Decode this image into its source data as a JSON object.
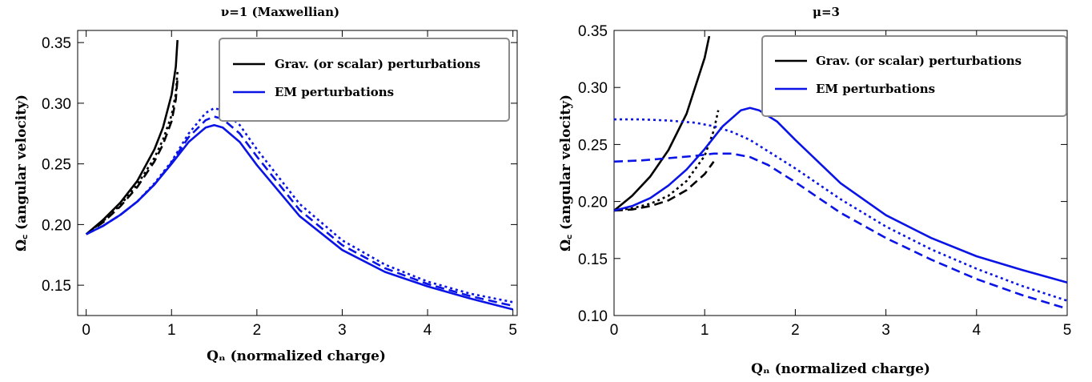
{
  "chart_data": [
    {
      "type": "line",
      "title": "ν=1 (Maxwellian)",
      "xlabel": "Qₙ (normalized charge)",
      "ylabel": "Ω꜀ (angular velocity)",
      "xlim": [
        -0.1,
        5.05
      ],
      "ylim": [
        0.125,
        0.36
      ],
      "xticks": [
        "0",
        "1",
        "2",
        "3",
        "4",
        "5"
      ],
      "yticks": [
        "0.15",
        "0.20",
        "0.25",
        "0.30",
        "0.35"
      ],
      "legend": {
        "placement": "top-right",
        "entries": [
          {
            "label": "Grav. (or scalar) perturbations",
            "color": "#000000"
          },
          {
            "label": "EM perturbations",
            "color": "#0a14e6"
          }
        ]
      },
      "series": [
        {
          "color": "#000000",
          "style": "solid",
          "x": [
            0,
            0.2,
            0.4,
            0.6,
            0.8,
            0.9,
            1.0,
            1.05,
            1.07
          ],
          "y": [
            0.192,
            0.204,
            0.218,
            0.236,
            0.262,
            0.28,
            0.307,
            0.33,
            0.352
          ]
        },
        {
          "color": "#000000",
          "style": "dashed",
          "x": [
            0,
            0.2,
            0.4,
            0.6,
            0.8,
            0.9,
            1.0,
            1.05,
            1.07
          ],
          "y": [
            0.192,
            0.202,
            0.215,
            0.231,
            0.252,
            0.266,
            0.285,
            0.303,
            0.32
          ]
        },
        {
          "color": "#000000",
          "style": "dotted",
          "x": [
            0,
            0.2,
            0.4,
            0.6,
            0.8,
            0.9,
            1.0,
            1.05,
            1.07
          ],
          "y": [
            0.192,
            0.203,
            0.216,
            0.233,
            0.255,
            0.27,
            0.29,
            0.308,
            0.326
          ]
        },
        {
          "color": "#0a14e6",
          "style": "solid",
          "x": [
            0,
            0.2,
            0.4,
            0.6,
            0.8,
            1.0,
            1.2,
            1.4,
            1.5,
            1.6,
            1.8,
            2.0,
            2.5,
            3.0,
            3.5,
            4.0,
            4.5,
            5.0
          ],
          "y": [
            0.192,
            0.199,
            0.208,
            0.219,
            0.233,
            0.25,
            0.268,
            0.28,
            0.282,
            0.28,
            0.268,
            0.249,
            0.207,
            0.179,
            0.161,
            0.149,
            0.139,
            0.13
          ]
        },
        {
          "color": "#0a14e6",
          "style": "dashed",
          "x": [
            0,
            0.2,
            0.4,
            0.6,
            0.8,
            1.0,
            1.2,
            1.4,
            1.5,
            1.6,
            1.8,
            2.0,
            2.5,
            3.0,
            3.5,
            4.0,
            4.5,
            5.0
          ],
          "y": [
            0.192,
            0.199,
            0.208,
            0.219,
            0.233,
            0.251,
            0.272,
            0.286,
            0.289,
            0.287,
            0.275,
            0.256,
            0.212,
            0.183,
            0.164,
            0.151,
            0.141,
            0.133
          ]
        },
        {
          "color": "#0a14e6",
          "style": "dotted",
          "x": [
            0,
            0.2,
            0.4,
            0.6,
            0.8,
            1.0,
            1.2,
            1.4,
            1.5,
            1.6,
            1.8,
            2.0,
            2.5,
            3.0,
            3.5,
            4.0,
            4.5,
            5.0
          ],
          "y": [
            0.192,
            0.199,
            0.208,
            0.219,
            0.234,
            0.252,
            0.275,
            0.292,
            0.296,
            0.294,
            0.282,
            0.262,
            0.217,
            0.187,
            0.167,
            0.153,
            0.143,
            0.136
          ]
        }
      ]
    },
    {
      "type": "line",
      "title": "μ=3",
      "xlabel": "Qₙ (normalized charge)",
      "ylabel": "Ω꜀ (angular velocity)",
      "xlim": [
        0,
        5
      ],
      "ylim": [
        0.1,
        0.35
      ],
      "xticks": [
        "0",
        "1",
        "2",
        "3",
        "4",
        "5"
      ],
      "yticks": [
        "0.10",
        "0.15",
        "0.20",
        "0.25",
        "0.30",
        "0.35"
      ],
      "legend": {
        "placement": "top-right",
        "entries": [
          {
            "label": "Grav. (or scalar) perturbations",
            "color": "#000000"
          },
          {
            "label": "EM perturbations",
            "color": "#0a14e6"
          }
        ]
      },
      "series": [
        {
          "color": "#000000",
          "style": "solid",
          "x": [
            0,
            0.2,
            0.4,
            0.6,
            0.8,
            1.0,
            1.05
          ],
          "y": [
            0.192,
            0.205,
            0.222,
            0.245,
            0.277,
            0.326,
            0.345
          ]
        },
        {
          "color": "#000000",
          "style": "dashed",
          "x": [
            0,
            0.2,
            0.4,
            0.6,
            0.8,
            1.0,
            1.1
          ],
          "y": [
            0.192,
            0.193,
            0.196,
            0.201,
            0.21,
            0.224,
            0.235
          ]
        },
        {
          "color": "#000000",
          "style": "dotted",
          "x": [
            0,
            0.2,
            0.4,
            0.6,
            0.8,
            1.0,
            1.1,
            1.15
          ],
          "y": [
            0.192,
            0.194,
            0.198,
            0.205,
            0.218,
            0.24,
            0.262,
            0.28
          ]
        },
        {
          "color": "#0a14e6",
          "style": "solid",
          "x": [
            0,
            0.2,
            0.4,
            0.6,
            0.8,
            1.0,
            1.2,
            1.4,
            1.5,
            1.6,
            1.8,
            2.0,
            2.5,
            3.0,
            3.5,
            4.0,
            4.5,
            5.0
          ],
          "y": [
            0.192,
            0.196,
            0.203,
            0.214,
            0.228,
            0.246,
            0.266,
            0.28,
            0.282,
            0.28,
            0.27,
            0.254,
            0.216,
            0.188,
            0.168,
            0.152,
            0.14,
            0.129
          ]
        },
        {
          "color": "#0a14e6",
          "style": "dashed",
          "x": [
            0,
            0.3,
            0.6,
            0.9,
            1.1,
            1.3,
            1.5,
            1.7,
            2.0,
            2.5,
            3.0,
            3.5,
            4.0,
            4.5,
            5.0
          ],
          "y": [
            0.235,
            0.236,
            0.238,
            0.24,
            0.242,
            0.242,
            0.239,
            0.232,
            0.217,
            0.19,
            0.168,
            0.149,
            0.132,
            0.118,
            0.106
          ]
        },
        {
          "color": "#0a14e6",
          "style": "dotted",
          "x": [
            0,
            0.3,
            0.6,
            0.9,
            1.1,
            1.3,
            1.5,
            1.7,
            2.0,
            2.5,
            3.0,
            3.5,
            4.0,
            4.5,
            5.0
          ],
          "y": [
            0.272,
            0.272,
            0.271,
            0.269,
            0.266,
            0.261,
            0.254,
            0.244,
            0.229,
            0.202,
            0.178,
            0.158,
            0.141,
            0.126,
            0.113
          ]
        }
      ]
    }
  ]
}
